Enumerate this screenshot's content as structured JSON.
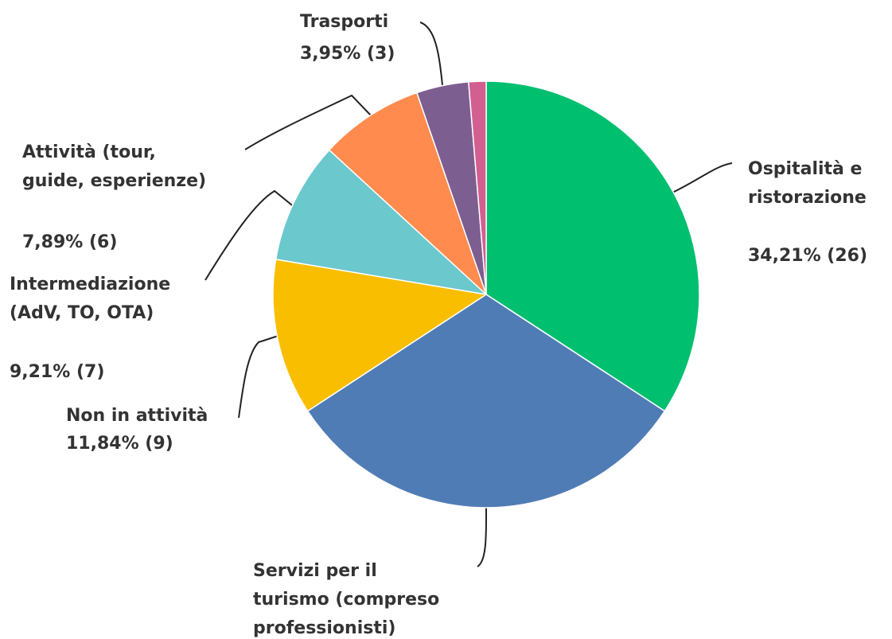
{
  "chart_data": {
    "type": "pie",
    "categories": [
      [
        "Ospitalità e",
        "ristorazione"
      ],
      [
        "Servizi per il",
        "turismo (compreso",
        "professionisti)"
      ],
      [
        "Non in attività"
      ],
      [
        "Intermediazione",
        "(AdV, TO, OTA)"
      ],
      [
        "Attività (tour,",
        "guide, esperienze)"
      ],
      [
        "Trasporti"
      ],
      null
    ],
    "values": [
      34.21,
      31.58,
      11.84,
      9.21,
      7.89,
      3.95,
      1.32
    ],
    "value_labels": [
      "34,21% (26)",
      null,
      "11,84% (9)",
      "9,21% (7)",
      "7,89% (6)",
      "3,95% (3)",
      null
    ],
    "colors": [
      "#00bf6f",
      "#507cb6",
      "#f9be00",
      "#6bc8cd",
      "#ff8b4f",
      "#7d5e90",
      "#d25f90"
    ]
  }
}
